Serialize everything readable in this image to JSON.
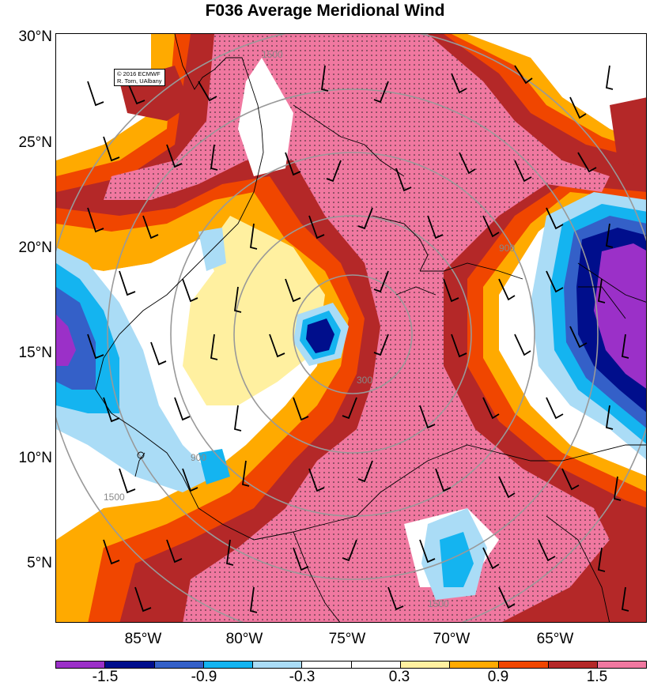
{
  "title": "F036 Average Meridional Wind",
  "credit": {
    "line1": "© 2016 ECMWF",
    "line2": "R. Torn, UAlbany"
  },
  "lat_labels": [
    "30°N",
    "25°N",
    "20°N",
    "15°N",
    "10°N",
    "5°N"
  ],
  "lon_labels": [
    "85°W",
    "80°W",
    "75°W",
    "70°W",
    "65°W"
  ],
  "colorbar": {
    "colors": [
      "#9b30c8",
      "#000e8c",
      "#3460c8",
      "#14b4f0",
      "#aadcf6",
      "#ffffff",
      "#ffffff",
      "#fff0a0",
      "#ffaa00",
      "#f04600",
      "#b42828",
      "#f078a0"
    ],
    "labels": [
      "-1.5",
      "-0.9",
      "-0.3",
      "0.3",
      "0.9",
      "1.5"
    ]
  },
  "range_ring_labels": [
    "300",
    "900",
    "1500"
  ],
  "map_colors": {
    "pink": "#f078a0",
    "darkred": "#b42828",
    "red": "#f04600",
    "orange": "#ffaa00",
    "yellow": "#fff0a0",
    "lightblue": "#aadcf6",
    "cyan": "#14b4f0",
    "blue": "#3460c8",
    "navy": "#000e8c",
    "purple": "#9b30c8"
  }
}
